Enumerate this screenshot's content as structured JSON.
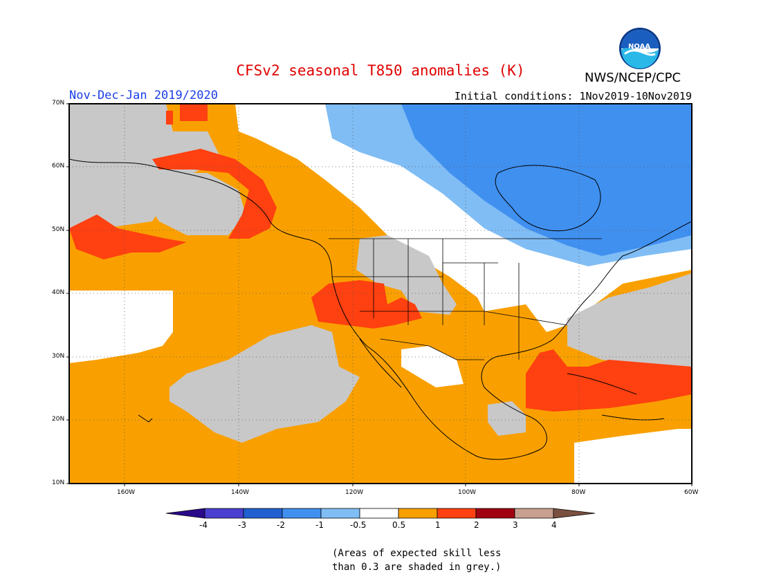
{
  "header": {
    "title": "CFSv2 seasonal T850 anomalies (K)",
    "season": "Nov-Dec-Jan 2019/2020",
    "initial_conditions": "Initial conditions: 1Nov2019-10Nov2019",
    "agency": "NWS/NCEP/CPC",
    "logo_text": "NOAA"
  },
  "map": {
    "projection": "lat-lon",
    "lat_labels": [
      "70N",
      "60N",
      "50N",
      "40N",
      "30N",
      "20N",
      "10N"
    ],
    "lon_labels": [
      "160W",
      "140W",
      "120W",
      "100W",
      "80W",
      "60W"
    ],
    "colors": {
      "below_-4": "#2a0a8a",
      "-4_-3": "#4a3fd0",
      "-3_-2": "#2060d0",
      "-2_-1": "#4090f0",
      "-1_-0.5": "#80bdf5",
      "neutral": "#ffffff",
      "0.5_1": "#f9a000",
      "1_2": "#ff4010",
      "2_3": "#a00010",
      "3_4": "#c8a090",
      "above_4": "#7a5040",
      "low_skill": "#c8c8c8"
    }
  },
  "colorbar": {
    "ticks": [
      "-4",
      "-3",
      "-2",
      "-1",
      "-0.5",
      "0.5",
      "1",
      "2",
      "3",
      "4"
    ]
  },
  "note": {
    "line1": "(Areas of expected skill less",
    "line2": "than 0.3 are shaded in grey.)"
  }
}
